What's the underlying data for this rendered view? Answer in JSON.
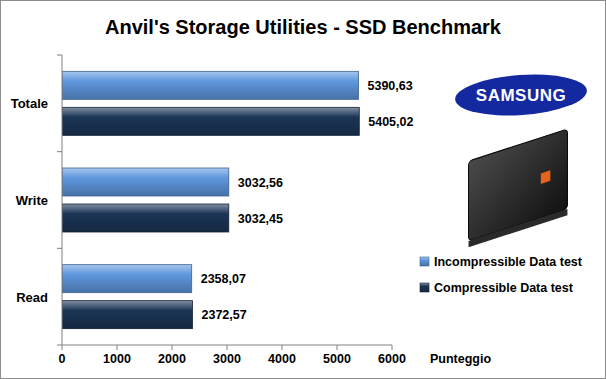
{
  "chart_data": {
    "type": "bar",
    "orientation": "horizontal",
    "title": "Anvil's Storage Utilities - SSD Benchmark",
    "ylabel": "Punteggio",
    "annotations": [
      "SAMSUNG"
    ],
    "categories": [
      "Totale",
      "Write",
      "Read"
    ],
    "series": [
      {
        "name": "Incompressible Data test",
        "color": "#5f97de",
        "values": [
          5390.63,
          3032.56,
          2358.07
        ],
        "value_labels": [
          "5390,63",
          "3032,56",
          "2358,07"
        ]
      },
      {
        "name": "Compressible Data test",
        "color": "#1b3556",
        "values": [
          5405.02,
          3032.45,
          2372.57
        ],
        "value_labels": [
          "5405,02",
          "3032,45",
          "2372,57"
        ]
      }
    ],
    "ylim": [
      0,
      6000
    ],
    "yticks": [
      0,
      1000,
      2000,
      3000,
      4000,
      5000,
      6000
    ],
    "grid": false,
    "legend": "right",
    "data_labels": true
  }
}
